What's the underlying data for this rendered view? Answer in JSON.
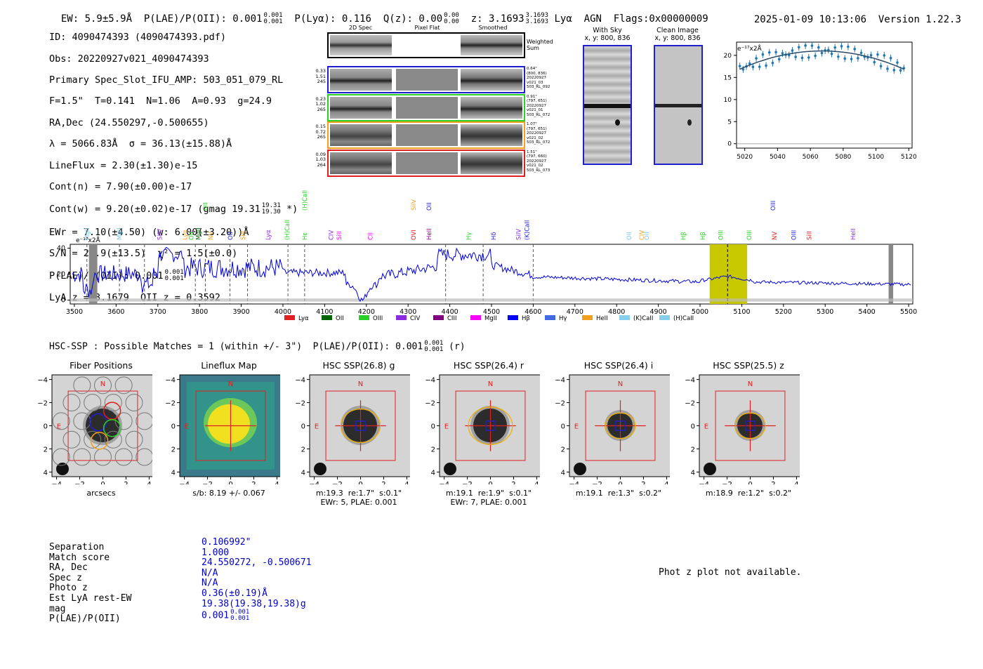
{
  "header": {
    "ew": "EW: 5.9±5.9Å",
    "plae_label": "P(LAE)/P(OII): 0.001",
    "plae_hi": "0.001",
    "plae_lo": "0.001",
    "plya": "P(Lyα): 0.116",
    "qz_label": "Q(z): 0.00",
    "qz_hi": "0.00",
    "qz_lo": "0.00",
    "z_label": "z: 3.1693",
    "z_hi": "3.1693",
    "z_lo": "3.1693",
    "line_type": "Lyα  AGN",
    "flags": "Flags:0x00000009",
    "timestamp": "2025-01-09 10:13:06",
    "version": "Version 1.22.3"
  },
  "info": {
    "id": "ID: 4090474393 (4090474393.pdf)",
    "obs": "Obs: 20220927v021_4090474393",
    "slot": "Primary Spec_Slot_IFU_AMP: 503_051_079_RL",
    "params": "F=1.5\"  T=0.141  N=1.06  A=0.93  g=24.9",
    "radec": "RA,Dec (24.550297,-0.500655)",
    "lambda": "λ = 5066.83Å  σ = 36.13(±15.88)Å",
    "lineflux": "LineFlux = 2.30(±1.30)e-15",
    "contn": "Cont(n) = 7.90(±0.00)e-17",
    "contw": "Cont(w) = 9.20(±0.02)e-17 (gmag 19.31",
    "contw_hi": "19.31",
    "contw_lo": "19.30",
    "contw_end": "*)",
    "ewr": "EWr = 7.10(±4.50) (w: 6.00(±3.20))Å",
    "sn": "S/N = 24.9(±13.5)  χ² = 1.5(±0.0)",
    "plae": "P(LAE)/P(OII): 0.001",
    "plae_hi": "0.001",
    "plae_lo": "0.001",
    "lyaz": "LyA z = 3.1679  OII z = 0.3592"
  },
  "cutouts": {
    "col_2d": "2D Spec",
    "col_flat": "Pixel Flat",
    "col_smooth": "Smoothed",
    "weighted": "Weighted\nSum",
    "rows": [
      {
        "left": "0.33\n1.51\n245",
        "right": "0.64\"\n(800, 836)\n20220927\nv021_03\n503_RL_092",
        "color": "#1f1fd0"
      },
      {
        "left": "0.23\n1.02\n265",
        "right": "0.91\"\n(797, 651)\n20220927\nv021_01\n503_RL_072",
        "color": "#28d028"
      },
      {
        "left": "0.15\n0.72\n265",
        "right": "1.07\"\n(797, 651)\n20220927\nv021_02\n503_RL_072",
        "color": "#f0a020"
      },
      {
        "left": "0.09\n1.03\n264",
        "right": "1.51\"\n(797, 660)\n20220927\nv021_02\n503_RL_073",
        "color": "#e02020"
      }
    ],
    "with_sky": "With Sky",
    "with_sky_xy": "x, y: 800, 836",
    "clean": "Clean Image",
    "clean_xy": "x, y: 800, 836"
  },
  "zoom_plot": {
    "unit": "e⁻¹⁷x2Å",
    "xticks": [
      "5020",
      "5040",
      "5060",
      "5080",
      "5100",
      "5120"
    ],
    "yticks": [
      "0",
      "5",
      "10",
      "15",
      "20"
    ]
  },
  "spectrum": {
    "unit": "e⁻¹⁷x2Å",
    "xticks": [
      "3500",
      "3600",
      "3700",
      "3800",
      "3900",
      "4000",
      "4100",
      "4200",
      "4300",
      "4400",
      "4500",
      "4600",
      "4700",
      "4800",
      "4900",
      "5000",
      "5100",
      "5200",
      "5300",
      "5400",
      "5500"
    ],
    "yticks": [
      "0",
      "20",
      "40"
    ],
    "line_labels": [
      {
        "t": "MgII",
        "w": 3530,
        "row": 1,
        "c": "#7ec8e8"
      },
      {
        "t": "MgII",
        "w": 3608,
        "row": 1,
        "c": "#7ec8e8"
      },
      {
        "t": "SiIV",
        "w": 3705,
        "row": 1,
        "c": "#8a2be2"
      },
      {
        "t": "Lyα",
        "w": 3765,
        "row": 1,
        "c": "#f0a020"
      },
      {
        "t": "OII",
        "w": 3780,
        "row": 1,
        "c": "#28d028"
      },
      {
        "t": "MgII",
        "w": 3797,
        "row": 1,
        "c": "#006400"
      },
      {
        "t": "OII",
        "w": 3814,
        "row": 0,
        "c": "#28d028"
      },
      {
        "t": "NV",
        "w": 3827,
        "row": 1,
        "c": "#f0a020"
      },
      {
        "t": "OII",
        "w": 3874,
        "row": 1,
        "c": "#1f1fd0"
      },
      {
        "t": "SiII",
        "w": 3904,
        "row": 1,
        "c": "#f0a020"
      },
      {
        "t": "Lyα",
        "w": 3965,
        "row": 1,
        "c": "#8a2be2"
      },
      {
        "t": "(H)CaII",
        "w": 4010,
        "row": 1,
        "c": "#28d028"
      },
      {
        "t": "Hε",
        "w": 4052,
        "row": 1,
        "c": "#28d028"
      },
      {
        "t": "(H)CaII",
        "w": 4052,
        "row": 0,
        "c": "#28d028"
      },
      {
        "t": "CIV",
        "w": 4115,
        "row": 1,
        "c": "#8a2be2"
      },
      {
        "t": "SiII",
        "w": 4135,
        "row": 1,
        "c": "#ff00ff"
      },
      {
        "t": "CII",
        "w": 4210,
        "row": 1,
        "c": "#ff00ff"
      },
      {
        "t": "SiIV",
        "w": 4313,
        "row": 0,
        "c": "#f0a020"
      },
      {
        "t": "OVI",
        "w": 4313,
        "row": 1,
        "c": "#e02020"
      },
      {
        "t": "OII",
        "w": 4350,
        "row": 0,
        "c": "#1f1fd0"
      },
      {
        "t": "HeII",
        "w": 4350,
        "row": 1,
        "c": "#8b008b"
      },
      {
        "t": "Hγ",
        "w": 4445,
        "row": 1,
        "c": "#28d028"
      },
      {
        "t": "Hδ",
        "w": 4505,
        "row": 1,
        "c": "#1f1fd0"
      },
      {
        "t": "SiIV",
        "w": 4565,
        "row": 1,
        "c": "#8a2be2"
      },
      {
        "t": "(K)CaII",
        "w": 4585,
        "row": 1,
        "c": "#1f1fd0"
      },
      {
        "t": "OII",
        "w": 4830,
        "row": 1,
        "c": "#7ec8e8"
      },
      {
        "t": "CIV",
        "w": 4860,
        "row": 1,
        "c": "#f0a020"
      },
      {
        "t": "OII",
        "w": 4872,
        "row": 1,
        "c": "#7ec8e8"
      },
      {
        "t": "Hβ",
        "w": 4960,
        "row": 1,
        "c": "#28d028"
      },
      {
        "t": "Hβ",
        "w": 5007,
        "row": 1,
        "c": "#28d028"
      },
      {
        "t": "OIII",
        "w": 5050,
        "row": 1,
        "c": "#28d028"
      },
      {
        "t": "OIII",
        "w": 5118,
        "row": 1,
        "c": "#28d028"
      },
      {
        "t": "OIII",
        "w": 5175,
        "row": 0,
        "c": "#1f1fd0"
      },
      {
        "t": "NV",
        "w": 5178,
        "row": 1,
        "c": "#e02020"
      },
      {
        "t": "OIII",
        "w": 5225,
        "row": 1,
        "c": "#1f1fd0"
      },
      {
        "t": "SiII",
        "w": 5262,
        "row": 1,
        "c": "#e02020"
      },
      {
        "t": "HeII",
        "w": 5367,
        "row": 1,
        "c": "#8a2be2"
      }
    ],
    "legend": [
      {
        "t": "Lyα",
        "c": "#e02020"
      },
      {
        "t": "OII",
        "c": "#006400"
      },
      {
        "t": "OIII",
        "c": "#28d028"
      },
      {
        "t": "CIV",
        "c": "#8a2be2"
      },
      {
        "t": "CIII",
        "c": "#800080"
      },
      {
        "t": "MgII",
        "c": "#ff00ff"
      },
      {
        "t": "Hβ",
        "c": "#0000ff"
      },
      {
        "t": "Hγ",
        "c": "#4169e1"
      },
      {
        "t": "HeII",
        "c": "#f0a020"
      },
      {
        "t": "(K)CaII",
        "c": "#87ceeb"
      },
      {
        "t": "(H)CaII",
        "c": "#87ceeb"
      }
    ]
  },
  "hsc": {
    "summary": "HSC-SSP : Possible Matches = 1 (within +/- 3\")  P(LAE)/P(OII): 0.001",
    "summary_hi": "0.001",
    "summary_lo": "0.001",
    "summary_end": "(r)",
    "panels": [
      {
        "title": "Fiber Positions",
        "cap1": "arcsecs",
        "cap2": ""
      },
      {
        "title": "Lineflux Map",
        "cap1": "s/b: 8.19 +/- 0.067",
        "cap2": ""
      },
      {
        "title": "HSC SSP(26.8) g",
        "cap1": "m:19.3  re:1.7\"  s:0.1\"",
        "cap2": "EWr: 5, PLAE: 0.001"
      },
      {
        "title": "HSC SSP(26.4) r",
        "cap1": "m:19.1  re:1.9\"  s:0.1\"",
        "cap2": "EWr: 7, PLAE: 0.001"
      },
      {
        "title": "HSC SSP(26.4) i",
        "cap1": "m:19.1  re:1.3\"  s:0.2\"",
        "cap2": ""
      },
      {
        "title": "HSC SSP(25.5) z",
        "cap1": "m:18.9  re:1.2\"  s:0.2\"",
        "cap2": ""
      }
    ],
    "ticks": [
      "−4",
      "−2",
      "0",
      "2",
      "4"
    ],
    "north": "N",
    "east": "E"
  },
  "match": {
    "labels": [
      "Separation",
      "Match score",
      "RA, Dec",
      "Spec z",
      "Photo z",
      "Est LyA rest-EW",
      "mag",
      "P(LAE)/P(OII)"
    ],
    "values": [
      "0.106992\"",
      "1.000",
      "24.550272, -0.500671",
      "N/A",
      "N/A",
      "0.36(±0.19)Å",
      "19.38(19.38,19.38)g",
      "0.001"
    ],
    "plae_hi": "0.001",
    "plae_lo": "0.001",
    "photz_msg": "Phot z plot not available."
  }
}
